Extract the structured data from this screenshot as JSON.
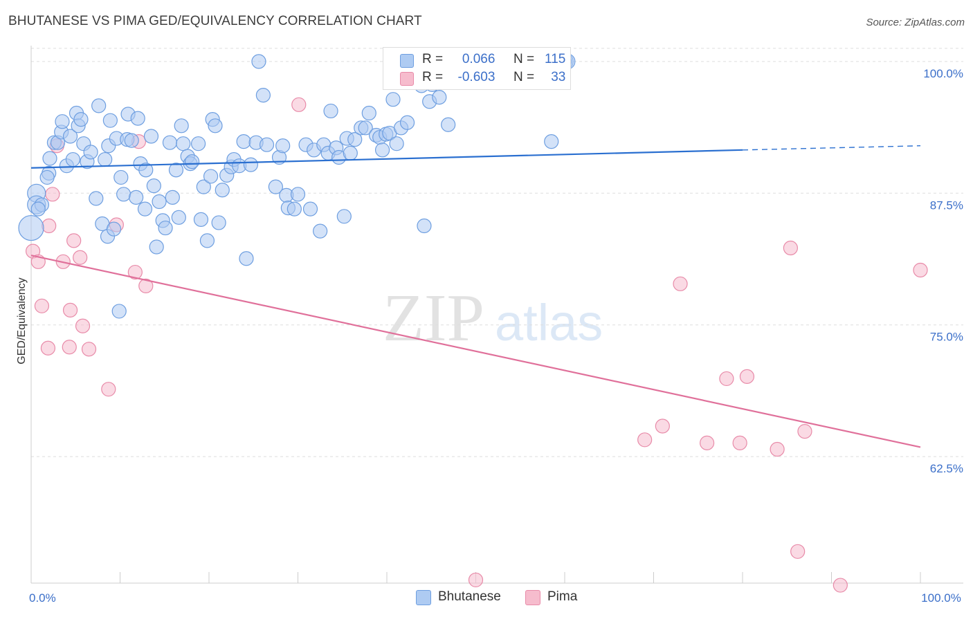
{
  "title": "BHUTANESE VS PIMA GED/EQUIVALENCY CORRELATION CHART",
  "source": "Source: ZipAtlas.com",
  "watermark": {
    "zip": "ZIP",
    "atlas": "atlas"
  },
  "legend_top": [
    {
      "r_label": "R =",
      "r_value": "0.066",
      "n_label": "N =",
      "n_value": "115"
    },
    {
      "r_label": "R =",
      "r_value": "-0.603",
      "n_label": "N =",
      "n_value": "33"
    }
  ],
  "legend_bottom": [
    {
      "label": "Bhutanese"
    },
    {
      "label": "Pima"
    }
  ],
  "colors": {
    "bhutanese_fill": "#aecbf2",
    "bhutanese_stroke": "#6d9ee0",
    "bhutanese_line": "#2a6fd0",
    "pima_fill": "#f6bccd",
    "pima_stroke": "#e88aa8",
    "pima_line": "#e0709a",
    "tick_label": "#3b6fc9",
    "grid": "#dddddd"
  },
  "chart_data": {
    "type": "scatter",
    "xlabel": "",
    "ylabel": "GED/Equivalency",
    "xlim": [
      0,
      100
    ],
    "ylim": [
      50.5,
      101.5
    ],
    "x_tick_labels": [
      {
        "value": 0,
        "label": "0.0%"
      },
      {
        "value": 100,
        "label": "100.0%"
      }
    ],
    "y_tick_labels": [
      {
        "value": 100,
        "label": "100.0%"
      },
      {
        "value": 87.5,
        "label": "87.5%"
      },
      {
        "value": 75,
        "label": "75.0%"
      },
      {
        "value": 62.5,
        "label": "62.5%"
      }
    ],
    "grid": true,
    "legend_placement": "top-center",
    "series": [
      {
        "name": "Bhutanese",
        "trend": {
          "x0": 0,
          "y0": 89.9,
          "x1": 80,
          "y1": 91.6,
          "dashed_to_x": 100,
          "dashed_to_y": 92.0
        },
        "points": [
          [
            0,
            84.2,
            3
          ],
          [
            0.6,
            87.5,
            2
          ],
          [
            0.6,
            86.4,
            2
          ],
          [
            1.2,
            86.4,
            1
          ],
          [
            0.8,
            86.0,
            1
          ],
          [
            2.0,
            89.4,
            1
          ],
          [
            1.8,
            89.0,
            1
          ],
          [
            2.1,
            90.8,
            1
          ],
          [
            2.6,
            92.3,
            1
          ],
          [
            3.0,
            92.3,
            1
          ],
          [
            3.4,
            93.3,
            1
          ],
          [
            3.5,
            94.3,
            1
          ],
          [
            4.0,
            90.1,
            1
          ],
          [
            4.4,
            92.9,
            1
          ],
          [
            4.7,
            90.7,
            1
          ],
          [
            5.1,
            95.1,
            1
          ],
          [
            5.3,
            93.9,
            1
          ],
          [
            5.6,
            94.5,
            1
          ],
          [
            5.9,
            92.2,
            1
          ],
          [
            6.3,
            90.5,
            1
          ],
          [
            6.7,
            91.4,
            1
          ],
          [
            7.3,
            87.0,
            1
          ],
          [
            7.6,
            95.8,
            1
          ],
          [
            8.0,
            84.6,
            1
          ],
          [
            8.3,
            90.7,
            1
          ],
          [
            8.6,
            83.4,
            1
          ],
          [
            8.7,
            92.0,
            1
          ],
          [
            8.9,
            94.4,
            1
          ],
          [
            9.3,
            84.1,
            1
          ],
          [
            9.6,
            92.7,
            1
          ],
          [
            9.9,
            76.3,
            1
          ],
          [
            10.1,
            89.0,
            1
          ],
          [
            10.4,
            87.4,
            1
          ],
          [
            10.9,
            95.0,
            1
          ],
          [
            10.8,
            92.6,
            1
          ],
          [
            11.3,
            92.5,
            1
          ],
          [
            11.8,
            87.1,
            1
          ],
          [
            12.0,
            94.6,
            1
          ],
          [
            12.3,
            90.3,
            1
          ],
          [
            12.8,
            86.0,
            1
          ],
          [
            12.9,
            89.7,
            1
          ],
          [
            13.5,
            92.9,
            1
          ],
          [
            13.8,
            88.2,
            1
          ],
          [
            14.1,
            82.4,
            1
          ],
          [
            14.4,
            86.7,
            1
          ],
          [
            14.8,
            84.9,
            1
          ],
          [
            15.1,
            84.2,
            1
          ],
          [
            15.6,
            92.3,
            1
          ],
          [
            15.9,
            87.1,
            1
          ],
          [
            16.3,
            89.7,
            1
          ],
          [
            16.6,
            85.2,
            1
          ],
          [
            16.9,
            93.9,
            1
          ],
          [
            17.1,
            92.2,
            1
          ],
          [
            17.6,
            91.0,
            1
          ],
          [
            17.9,
            90.3,
            1
          ],
          [
            18.1,
            90.5,
            1
          ],
          [
            18.8,
            92.2,
            1
          ],
          [
            19.1,
            85.0,
            1
          ],
          [
            19.4,
            88.1,
            1
          ],
          [
            19.8,
            83.0,
            1
          ],
          [
            20.2,
            89.1,
            1
          ],
          [
            20.4,
            94.5,
            1
          ],
          [
            20.7,
            93.9,
            1
          ],
          [
            21.1,
            84.7,
            1
          ],
          [
            21.5,
            87.8,
            1
          ],
          [
            22.0,
            89.2,
            1
          ],
          [
            22.5,
            90.0,
            1
          ],
          [
            22.8,
            90.7,
            1
          ],
          [
            23.4,
            90.1,
            1
          ],
          [
            23.9,
            92.4,
            1
          ],
          [
            24.2,
            81.3,
            1
          ],
          [
            24.7,
            90.2,
            1
          ],
          [
            25.3,
            92.3,
            1
          ],
          [
            25.6,
            100.0,
            1
          ],
          [
            26.1,
            96.8,
            1
          ],
          [
            26.5,
            92.1,
            1
          ],
          [
            27.5,
            88.1,
            1
          ],
          [
            27.9,
            90.9,
            1
          ],
          [
            28.3,
            92.0,
            1
          ],
          [
            28.7,
            87.3,
            1
          ],
          [
            28.9,
            86.1,
            1
          ],
          [
            29.6,
            86.0,
            1
          ],
          [
            30.0,
            87.4,
            1
          ],
          [
            30.9,
            92.1,
            1
          ],
          [
            31.4,
            86.0,
            1
          ],
          [
            31.8,
            91.6,
            1
          ],
          [
            32.5,
            83.9,
            1
          ],
          [
            32.9,
            92.1,
            1
          ],
          [
            33.4,
            91.3,
            1
          ],
          [
            33.7,
            95.3,
            1
          ],
          [
            34.3,
            91.8,
            1
          ],
          [
            34.6,
            90.9,
            1
          ],
          [
            35.2,
            85.3,
            1
          ],
          [
            35.5,
            92.7,
            1
          ],
          [
            35.9,
            91.3,
            1
          ],
          [
            36.4,
            92.6,
            1
          ],
          [
            37.1,
            93.7,
            1
          ],
          [
            37.6,
            93.7,
            1
          ],
          [
            38.0,
            95.1,
            1
          ],
          [
            38.8,
            93.0,
            1
          ],
          [
            39.2,
            92.8,
            1
          ],
          [
            39.5,
            91.6,
            1
          ],
          [
            39.9,
            93.1,
            1
          ],
          [
            40.3,
            93.2,
            1
          ],
          [
            40.7,
            96.4,
            1
          ],
          [
            41.1,
            92.2,
            1
          ],
          [
            41.6,
            93.7,
            1
          ],
          [
            42.3,
            94.2,
            1
          ],
          [
            43.5,
            100.0,
            2
          ],
          [
            43.9,
            97.7,
            1
          ],
          [
            44.8,
            96.2,
            1
          ],
          [
            45.1,
            97.8,
            1
          ],
          [
            45.9,
            96.6,
            1
          ],
          [
            46.9,
            94.0,
            1
          ],
          [
            58.5,
            92.4,
            1
          ],
          [
            44.2,
            84.4,
            1
          ],
          [
            59.2,
            100.0,
            0
          ],
          [
            60.1,
            100.0,
            0
          ],
          [
            59.9,
            100.0,
            0
          ],
          [
            60.3,
            100.0,
            0
          ]
        ]
      },
      {
        "name": "Pima",
        "trend": {
          "x0": 0,
          "y0": 81.6,
          "x1": 100,
          "y1": 63.4
        },
        "points": [
          [
            0.2,
            82.0,
            1
          ],
          [
            0.8,
            81.0,
            1
          ],
          [
            1.2,
            76.8,
            1
          ],
          [
            1.9,
            72.8,
            1
          ],
          [
            2.0,
            84.4,
            1
          ],
          [
            2.4,
            87.4,
            1
          ],
          [
            2.9,
            92.0,
            1
          ],
          [
            3.6,
            81.0,
            1
          ],
          [
            4.3,
            72.9,
            1
          ],
          [
            4.4,
            76.4,
            1
          ],
          [
            4.8,
            83.0,
            1
          ],
          [
            5.5,
            81.4,
            1
          ],
          [
            5.8,
            74.9,
            1
          ],
          [
            6.5,
            72.7,
            1
          ],
          [
            8.7,
            68.9,
            1
          ],
          [
            9.6,
            84.5,
            1
          ],
          [
            11.7,
            80.0,
            1
          ],
          [
            12.1,
            92.4,
            1
          ],
          [
            12.9,
            78.7,
            1
          ],
          [
            30.1,
            95.9,
            1
          ],
          [
            50.0,
            50.8,
            1
          ],
          [
            69.0,
            64.1,
            1
          ],
          [
            71.0,
            65.4,
            1
          ],
          [
            73.0,
            78.9,
            1
          ],
          [
            76.0,
            63.8,
            1
          ],
          [
            78.2,
            69.9,
            1
          ],
          [
            79.7,
            63.8,
            1
          ],
          [
            80.5,
            70.1,
            1
          ],
          [
            83.9,
            63.2,
            1
          ],
          [
            85.4,
            82.3,
            1
          ],
          [
            86.2,
            53.5,
            1
          ],
          [
            87.0,
            64.9,
            1
          ],
          [
            91.0,
            50.3,
            1
          ],
          [
            100.0,
            80.2,
            1
          ]
        ]
      }
    ]
  }
}
